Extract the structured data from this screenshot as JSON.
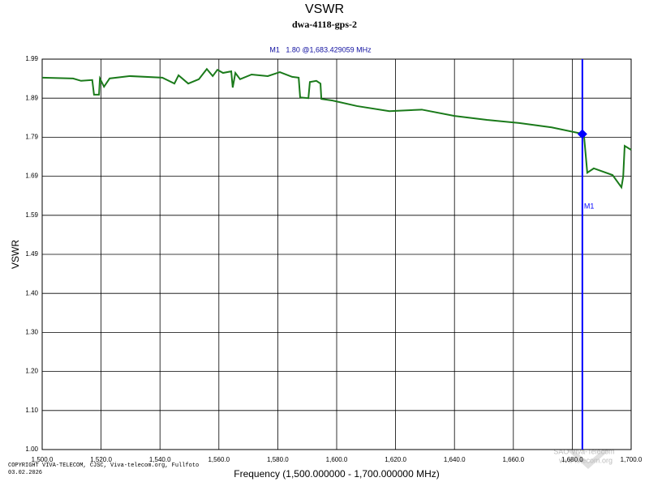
{
  "chart_data": {
    "type": "line",
    "title": "VSWR",
    "subtitle": "dwa-4118-gps-2",
    "x_label": "Frequency (1,500.000000 - 1,700.000000 MHz)",
    "y_label": "VSWR",
    "copyright": "COPYRIGHT VIVA-TELECOM, CJSC, Viva-telecom.org, Fullfoto",
    "date": "03.02.2026",
    "watermark": [
      "SAO Viva-Telecom",
      "viva-telecom.org"
    ],
    "color": "#1a7a1a",
    "grid": true,
    "x": [
      1500,
      1510.5,
      1513.2,
      1517,
      1517.6,
      1519.3,
      1519.6,
      1521,
      1522.9,
      1529.8,
      1540.8,
      1544.9,
      1546.3,
      1549.6,
      1553.2,
      1555.9,
      1557.9,
      1559.5,
      1561.4,
      1564.2,
      1564.7,
      1565.6,
      1567.2,
      1571.1,
      1576.6,
      1580.7,
      1584.9,
      1587.1,
      1587.6,
      1590.4,
      1590.9,
      1593.1,
      1594.5,
      1594.8,
      1598.6,
      1606.9,
      1617.9,
      1628.9,
      1640,
      1651,
      1662,
      1673,
      1683.2,
      1684,
      1685.1,
      1687.3,
      1693.7,
      1696.7,
      1697.3,
      1697.8,
      1700
    ],
    "values": [
      1.943,
      1.941,
      1.935,
      1.937,
      1.9,
      1.9,
      1.941,
      1.92,
      1.941,
      1.947,
      1.943,
      1.928,
      1.949,
      1.928,
      1.939,
      1.965,
      1.947,
      1.963,
      1.955,
      1.959,
      1.918,
      1.955,
      1.939,
      1.951,
      1.947,
      1.957,
      1.945,
      1.943,
      1.893,
      1.891,
      1.932,
      1.935,
      1.928,
      1.889,
      1.885,
      1.871,
      1.858,
      1.862,
      1.846,
      1.836,
      1.828,
      1.817,
      1.801,
      1.795,
      1.702,
      1.713,
      1.696,
      1.665,
      1.692,
      1.77,
      1.76
    ],
    "xlim": [
      1500,
      1700
    ],
    "ylim": [
      1.0,
      1.99
    ],
    "xticks": [
      {
        "value": 1500,
        "label": "1,500.0"
      },
      {
        "value": 1520,
        "label": "1,520.0"
      },
      {
        "value": 1540,
        "label": "1,540.0"
      },
      {
        "value": 1560,
        "label": "1,560.0"
      },
      {
        "value": 1580,
        "label": "1,580.0"
      },
      {
        "value": 1600,
        "label": "1,600.0"
      },
      {
        "value": 1620,
        "label": "1,620.0"
      },
      {
        "value": 1640,
        "label": "1,640.0"
      },
      {
        "value": 1660,
        "label": "1,660.0"
      },
      {
        "value": 1680,
        "label": "1,680.0"
      },
      {
        "value": 1700,
        "label": "1,700.0"
      }
    ],
    "yticks": [
      {
        "value": 1.0,
        "label": "1.00"
      },
      {
        "value": 1.099,
        "label": "1.10"
      },
      {
        "value": 1.198,
        "label": "1.20"
      },
      {
        "value": 1.297,
        "label": "1.30"
      },
      {
        "value": 1.396,
        "label": "1.40"
      },
      {
        "value": 1.495,
        "label": "1.49"
      },
      {
        "value": 1.594,
        "label": "1.59"
      },
      {
        "value": 1.693,
        "label": "1.69"
      },
      {
        "value": 1.792,
        "label": "1.79"
      },
      {
        "value": 1.891,
        "label": "1.89"
      },
      1.99
    ],
    "marker": {
      "name": "M1",
      "x": 1683.429059,
      "y": 1.8,
      "color": "#0000ff",
      "label": "M1   1.80 @1,683.429059 MHz"
    }
  }
}
